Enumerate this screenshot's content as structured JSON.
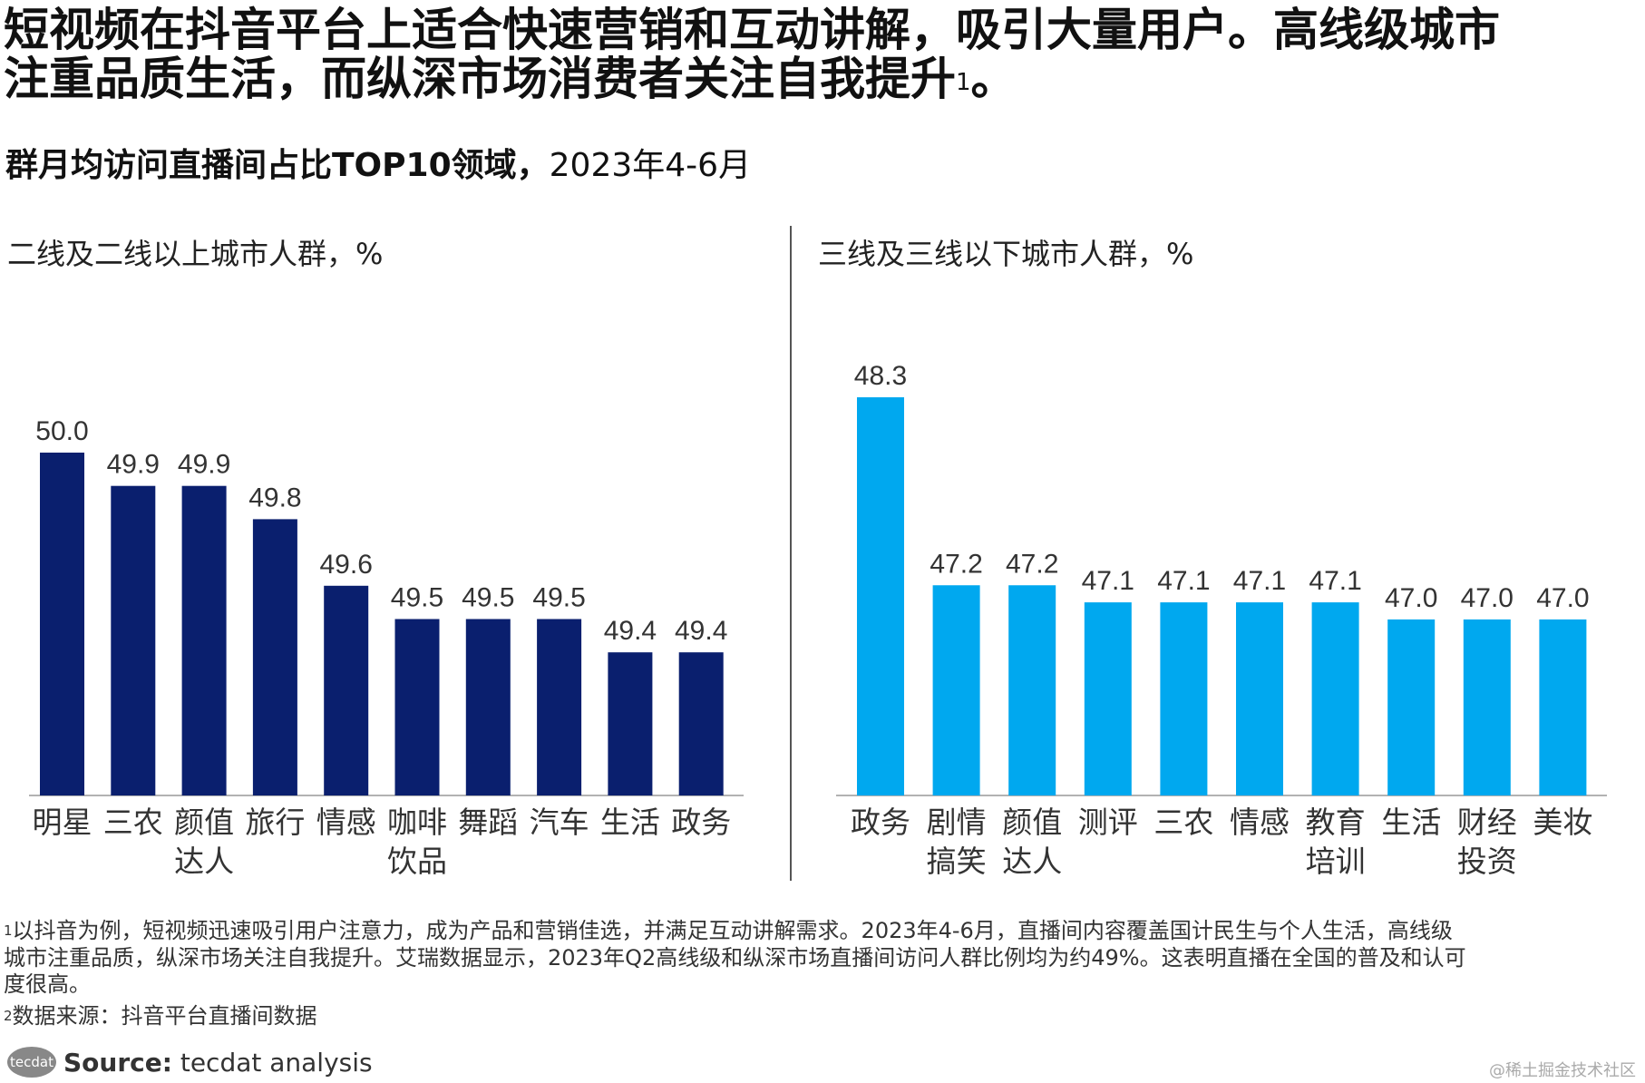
{
  "title": {
    "line1": "短视频在抖音平台上适合快速营销和互动讲解，吸引大量用户。高线级城市",
    "line2": "注重品质生活，而纵深市场消费者关注自我提升",
    "line2_sup": "1",
    "line2_end": "。"
  },
  "subtitle": {
    "bold": "群月均访问直播间占比TOP10领域，",
    "rest": "2023年4-6月"
  },
  "chart_data": [
    {
      "type": "bar",
      "title": "二线及二线以上城市人群，%",
      "color": "#0a1f6e",
      "categories": [
        "明星",
        "三农",
        "颜值\n达人",
        "旅行",
        "情感",
        "咖啡\n饮品",
        "舞蹈",
        "汽车",
        "生活",
        "政务"
      ],
      "values": [
        50.0,
        49.9,
        49.9,
        49.8,
        49.6,
        49.5,
        49.5,
        49.5,
        49.4,
        49.4
      ],
      "labels": [
        "50.0",
        "49.9",
        "49.9",
        "49.8",
        "49.6",
        "49.5",
        "49.5",
        "49.5",
        "49.4",
        "49.4"
      ],
      "ylim": [
        48.97,
        50.0
      ]
    },
    {
      "type": "bar",
      "title": "三线及三线以下城市人群，%",
      "color": "#00a8ef",
      "categories": [
        "政务",
        "剧情\n搞笑",
        "颜值\n达人",
        "测评",
        "三农",
        "情感",
        "教育\n培训",
        "生活",
        "财经\n投资",
        "美妆"
      ],
      "values": [
        48.3,
        47.2,
        47.2,
        47.1,
        47.1,
        47.1,
        47.1,
        47.0,
        47.0,
        47.0
      ],
      "labels": [
        "48.3",
        "47.2",
        "47.2",
        "47.1",
        "47.1",
        "47.1",
        "47.1",
        "47.0",
        "47.0",
        "47.0"
      ],
      "ylim": [
        45.97,
        48.3
      ]
    }
  ],
  "footnotes": {
    "n1_sup": "1",
    "n1_l1": "以抖音为例，短视频迅速吸引用户注意力，成为产品和营销佳选，并满足互动讲解需求。2023年4-6月，直播间内容覆盖国计民生与个人生活，高线级",
    "n1_l2": "城市注重品质，纵深市场关注自我提升。艾瑞数据显示，2023年Q2高线级和纵深市场直播间访问人群比例均为约49%。这表明直播在全国的普及和认可",
    "n1_l3": "度很高。",
    "n2_sup": "2",
    "n2": "数据来源：抖音平台直播间数据"
  },
  "source": {
    "logo": "tecdat",
    "label": "Source:",
    "text": " tecdat analysis"
  },
  "watermark": "@稀土掘金技术社区"
}
